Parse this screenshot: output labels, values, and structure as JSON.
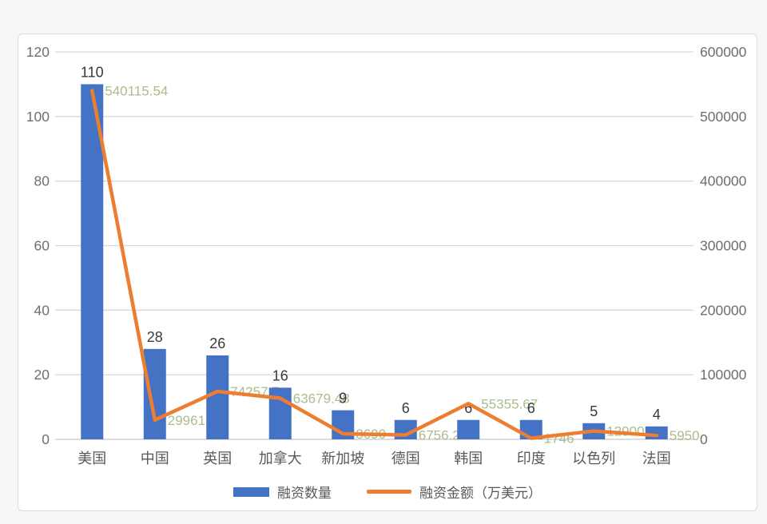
{
  "chart_data": {
    "type": "combo-bar-line",
    "categories": [
      "美国",
      "中国",
      "英国",
      "加拿大",
      "新加坡",
      "德国",
      "韩国",
      "印度",
      "以色列",
      "法国"
    ],
    "series": [
      {
        "name": "融资数量",
        "type": "bar",
        "axis": "left",
        "color": "#4472C4",
        "values": [
          110,
          28,
          26,
          16,
          9,
          6,
          6,
          6,
          5,
          4
        ],
        "labels": [
          "110",
          "28",
          "26",
          "16",
          "9",
          "6",
          "6",
          "6",
          "5",
          "4"
        ],
        "label_color": "#3a3a3a"
      },
      {
        "name": "融资金额（万美元）",
        "type": "line",
        "axis": "right",
        "color": "#ED7D31",
        "values": [
          540115.54,
          29961.52,
          74257.7,
          63679.48,
          8690,
          6756.2,
          55355.67,
          1746,
          12900,
          5950
        ],
        "labels": [
          "540115.54",
          "29961.52",
          "74257.7",
          "63679.48",
          "8690",
          "6756.2",
          "55355.67",
          "1746",
          "12900",
          "5950"
        ],
        "label_color": "#a9bd8d"
      }
    ],
    "left_axis": {
      "min": 0,
      "max": 120,
      "step": 20,
      "ticks": [
        "0",
        "20",
        "40",
        "60",
        "80",
        "100",
        "120"
      ]
    },
    "right_axis": {
      "min": 0,
      "max": 600000,
      "step": 100000,
      "ticks": [
        "0",
        "100000",
        "200000",
        "300000",
        "400000",
        "500000",
        "600000"
      ]
    },
    "grid": true,
    "legend_position": "bottom"
  },
  "style": {
    "grid_color": "#d9d9d9",
    "axis_text_color": "#6e6e6e",
    "category_text_color": "#595959"
  }
}
